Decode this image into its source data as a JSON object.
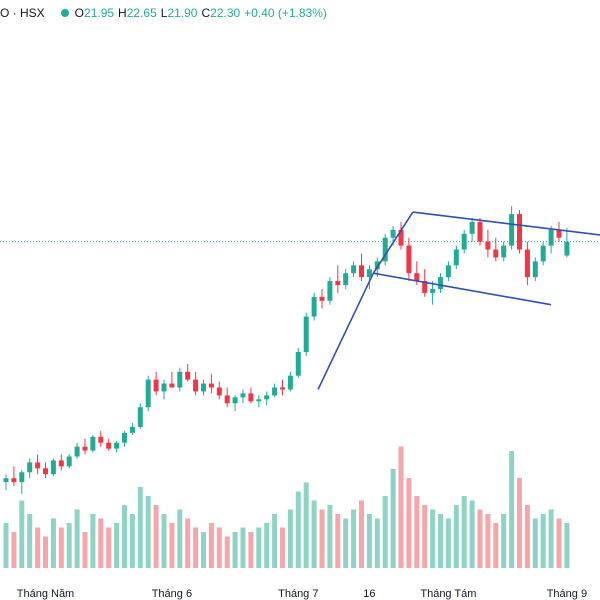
{
  "header": {
    "symbol": "O · HSX",
    "o_label": "O",
    "o_value": "21.95",
    "h_label": "H",
    "h_value": "22.65",
    "l_label": "L",
    "l_value": "21.90",
    "c_label": "C",
    "c_value": "22.30",
    "change": "+0.40 (+1.83%)"
  },
  "colors": {
    "up": "#22ab94",
    "down": "#f23645",
    "vol_up": "#8fd3c6",
    "vol_down": "#f6a5ab",
    "trend": "#2f4fb6",
    "last": "#22ab94"
  },
  "chart_data": {
    "type": "candlestick",
    "x_ticks": [
      "Tháng Năm",
      "Tháng 6",
      "Tháng 7",
      "16",
      "Tháng Tám",
      "Tháng 9"
    ],
    "last_price": 22.3,
    "candles": [
      [
        16.2,
        16.4,
        16.0,
        16.3
      ],
      [
        16.3,
        16.6,
        16.1,
        16.2
      ],
      [
        16.2,
        16.5,
        15.9,
        16.45
      ],
      [
        16.45,
        16.8,
        16.3,
        16.7
      ],
      [
        16.7,
        16.9,
        16.4,
        16.55
      ],
      [
        16.55,
        16.7,
        16.3,
        16.4
      ],
      [
        16.4,
        16.8,
        16.35,
        16.75
      ],
      [
        16.75,
        16.9,
        16.5,
        16.6
      ],
      [
        16.6,
        16.9,
        16.55,
        16.85
      ],
      [
        16.85,
        17.2,
        16.8,
        17.1
      ],
      [
        17.1,
        17.3,
        16.9,
        17.0
      ],
      [
        17.0,
        17.4,
        16.95,
        17.35
      ],
      [
        17.35,
        17.5,
        17.1,
        17.2
      ],
      [
        17.2,
        17.3,
        17.0,
        17.05
      ],
      [
        17.05,
        17.25,
        16.95,
        17.2
      ],
      [
        17.2,
        17.5,
        17.1,
        17.45
      ],
      [
        17.45,
        17.7,
        17.4,
        17.6
      ],
      [
        17.6,
        18.2,
        17.55,
        18.1
      ],
      [
        18.1,
        18.9,
        18.0,
        18.8
      ],
      [
        18.8,
        19.0,
        18.4,
        18.5
      ],
      [
        18.5,
        18.8,
        18.3,
        18.7
      ],
      [
        18.7,
        19.0,
        18.6,
        18.6
      ],
      [
        18.6,
        19.1,
        18.5,
        19.0
      ],
      [
        19.0,
        19.2,
        18.75,
        18.8
      ],
      [
        18.8,
        19.0,
        18.4,
        18.5
      ],
      [
        18.5,
        18.8,
        18.4,
        18.7
      ],
      [
        18.7,
        18.95,
        18.45,
        18.6
      ],
      [
        18.6,
        18.75,
        18.3,
        18.4
      ],
      [
        18.4,
        18.6,
        18.1,
        18.2
      ],
      [
        18.2,
        18.4,
        18.0,
        18.35
      ],
      [
        18.35,
        18.55,
        18.2,
        18.45
      ],
      [
        18.45,
        18.6,
        18.2,
        18.25
      ],
      [
        18.25,
        18.4,
        18.1,
        18.3
      ],
      [
        18.3,
        18.5,
        18.15,
        18.4
      ],
      [
        18.4,
        18.7,
        18.35,
        18.6
      ],
      [
        18.6,
        18.8,
        18.4,
        18.55
      ],
      [
        18.55,
        19.0,
        18.5,
        18.9
      ],
      [
        18.9,
        19.6,
        18.85,
        19.5
      ],
      [
        19.5,
        20.5,
        19.4,
        20.4
      ],
      [
        20.4,
        21.0,
        20.3,
        20.9
      ],
      [
        20.9,
        21.1,
        20.6,
        20.8
      ],
      [
        20.8,
        21.4,
        20.7,
        21.3
      ],
      [
        21.3,
        21.7,
        21.0,
        21.2
      ],
      [
        21.2,
        21.6,
        21.1,
        21.5
      ],
      [
        21.5,
        21.8,
        21.4,
        21.7
      ],
      [
        21.7,
        22.0,
        21.3,
        21.4
      ],
      [
        21.4,
        21.7,
        21.1,
        21.6
      ],
      [
        21.6,
        21.9,
        21.4,
        21.8
      ],
      [
        21.8,
        22.5,
        21.7,
        22.4
      ],
      [
        22.4,
        22.7,
        22.2,
        22.6
      ],
      [
        22.6,
        22.8,
        22.1,
        22.2
      ],
      [
        22.2,
        22.4,
        21.3,
        21.5
      ],
      [
        21.5,
        21.8,
        21.2,
        21.3
      ],
      [
        21.3,
        21.6,
        20.9,
        21.0
      ],
      [
        21.0,
        21.3,
        20.7,
        21.1
      ],
      [
        21.1,
        21.5,
        21.0,
        21.4
      ],
      [
        21.4,
        21.8,
        21.3,
        21.7
      ],
      [
        21.7,
        22.2,
        21.6,
        22.1
      ],
      [
        22.1,
        22.6,
        22.0,
        22.5
      ],
      [
        22.5,
        22.9,
        22.3,
        22.8
      ],
      [
        22.8,
        22.9,
        22.2,
        22.3
      ],
      [
        22.3,
        22.6,
        21.9,
        22.1
      ],
      [
        22.1,
        22.4,
        21.8,
        21.9
      ],
      [
        21.9,
        22.3,
        21.8,
        22.2
      ],
      [
        22.2,
        23.2,
        22.1,
        23.0
      ],
      [
        23.0,
        23.1,
        22.0,
        22.1
      ],
      [
        22.1,
        22.3,
        21.2,
        21.4
      ],
      [
        21.4,
        21.9,
        21.3,
        21.8
      ],
      [
        21.8,
        22.3,
        21.7,
        22.2
      ],
      [
        22.2,
        22.7,
        22.0,
        22.6
      ],
      [
        22.6,
        22.8,
        22.3,
        22.4
      ],
      [
        21.95,
        22.65,
        21.9,
        22.3
      ]
    ],
    "volume": [
      10,
      8,
      15,
      12,
      9,
      7,
      11,
      9,
      10,
      13,
      8,
      12,
      11,
      9,
      10,
      14,
      12,
      18,
      16,
      14,
      12,
      10,
      13,
      11,
      9,
      8,
      10,
      9,
      7,
      8,
      9,
      8,
      9,
      10,
      12,
      9,
      13,
      17,
      19,
      15,
      13,
      14,
      12,
      11,
      13,
      15,
      12,
      11,
      16,
      22,
      27,
      20,
      16,
      14,
      13,
      12,
      11,
      14,
      16,
      15,
      13,
      12,
      10,
      12,
      26,
      20,
      14,
      11,
      12,
      13,
      11,
      10
    ]
  }
}
